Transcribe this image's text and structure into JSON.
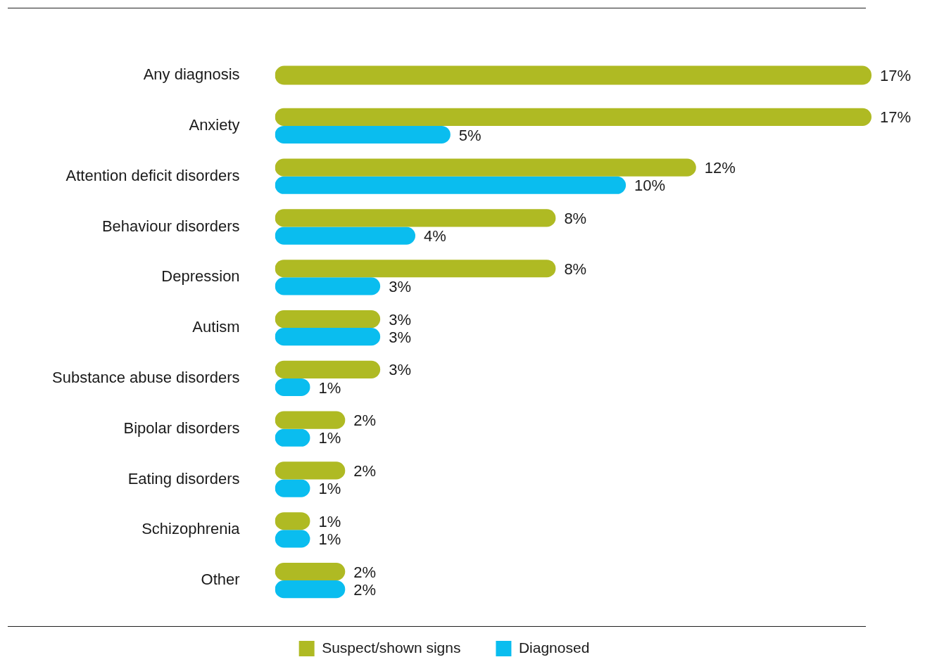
{
  "chart_data": {
    "type": "bar",
    "orientation": "horizontal",
    "categories": [
      "Any diagnosis",
      "Anxiety",
      "Attention deficit disorders",
      "Behaviour disorders",
      "Depression",
      "Autism",
      "Substance abuse disorders",
      "Bipolar disorders",
      "Eating disorders",
      "Schizophrenia",
      "Other"
    ],
    "series": [
      {
        "name": "Suspect/shown signs",
        "color": "#afba23",
        "values": [
          17,
          17,
          12,
          8,
          8,
          3,
          3,
          2,
          2,
          1,
          2
        ],
        "value_labels": [
          "17%",
          "17%",
          "12%",
          "8%",
          "8%",
          "3%",
          "3%",
          "2%",
          "2%",
          "1%",
          "2%"
        ]
      },
      {
        "name": "Diagnosed",
        "color": "#0abdef",
        "values": [
          null,
          5,
          10,
          4,
          3,
          3,
          1,
          1,
          1,
          1,
          2
        ],
        "value_labels": [
          null,
          "5%",
          "10%",
          "4%",
          "3%",
          "3%",
          "1%",
          "1%",
          "1%",
          "1%",
          "2%"
        ]
      }
    ],
    "xlim": [
      0,
      17
    ],
    "tick_labels": "y",
    "legend": "bottom"
  }
}
